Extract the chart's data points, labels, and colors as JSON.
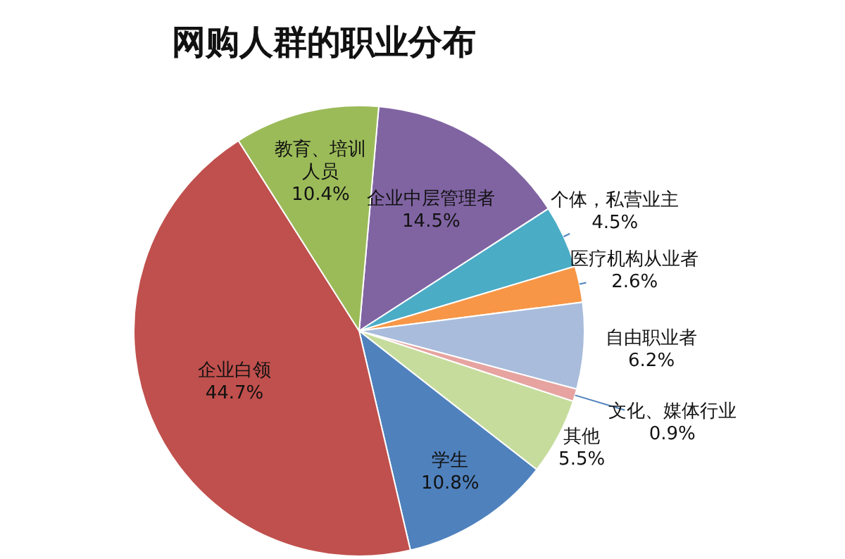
{
  "chart_data": {
    "type": "pie",
    "title": "网购人群的职业分布",
    "categories": [
      "企业中层管理者",
      "个体，私营业主",
      "医疗机构从业者",
      "自由职业者",
      "文化、媒体行业",
      "其他",
      "学生",
      "企业白领",
      "教育、培训人员"
    ],
    "values": [
      14.5,
      4.5,
      2.6,
      6.2,
      0.9,
      5.5,
      10.8,
      44.7,
      10.4
    ],
    "colors": [
      "#8064a2",
      "#4bacc6",
      "#f79646",
      "#a9bcdc",
      "#e6a3a0",
      "#c6dc9c",
      "#4f81bd",
      "#c0504d",
      "#9bbb59"
    ],
    "value_labels": [
      "14.5%",
      "4.5%",
      "2.6%",
      "6.2%",
      "0.9%",
      "5.5%",
      "10.8%",
      "44.7%",
      "10.4%"
    ]
  }
}
